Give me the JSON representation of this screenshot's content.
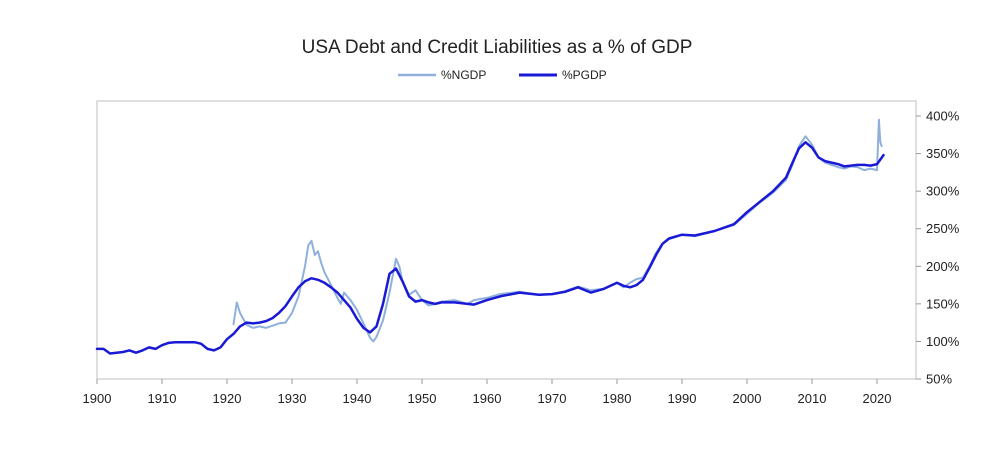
{
  "chart_data": {
    "type": "line",
    "title": "USA Debt and Credit Liabilities as a % of GDP",
    "xlabel": "",
    "ylabel": "",
    "xlim": [
      1900,
      2026
    ],
    "ylim": [
      50,
      420
    ],
    "x_ticks": [
      "1900",
      "1910",
      "1920",
      "1930",
      "1940",
      "1950",
      "1960",
      "1970",
      "1980",
      "1990",
      "2000",
      "2010",
      "2020"
    ],
    "y_ticks": [
      "50%",
      "100%",
      "150%",
      "200%",
      "250%",
      "300%",
      "350%",
      "400%"
    ],
    "y_tick_values": [
      50,
      100,
      150,
      200,
      250,
      300,
      350,
      400
    ],
    "grid": false,
    "legend_position": "top-center",
    "series": [
      {
        "name": "%NGDP",
        "color": "#8fb0dc",
        "points": [
          [
            1921,
            123
          ],
          [
            1921.5,
            152
          ],
          [
            1922,
            138
          ],
          [
            1923,
            122
          ],
          [
            1924,
            118
          ],
          [
            1925,
            120
          ],
          [
            1926,
            118
          ],
          [
            1927,
            121
          ],
          [
            1928,
            124
          ],
          [
            1929,
            125
          ],
          [
            1930,
            138
          ],
          [
            1931,
            160
          ],
          [
            1932,
            200
          ],
          [
            1932.5,
            228
          ],
          [
            1933,
            234
          ],
          [
            1933.5,
            215
          ],
          [
            1934,
            220
          ],
          [
            1934.5,
            204
          ],
          [
            1935,
            192
          ],
          [
            1936,
            175
          ],
          [
            1937,
            158
          ],
          [
            1937.5,
            150
          ],
          [
            1938,
            165
          ],
          [
            1939,
            155
          ],
          [
            1940,
            142
          ],
          [
            1941,
            124
          ],
          [
            1942,
            105
          ],
          [
            1942.5,
            100
          ],
          [
            1943,
            106
          ],
          [
            1944,
            128
          ],
          [
            1945,
            165
          ],
          [
            1946,
            210
          ],
          [
            1946.5,
            200
          ],
          [
            1947,
            180
          ],
          [
            1948,
            162
          ],
          [
            1949,
            168
          ],
          [
            1950,
            155
          ],
          [
            1951,
            148
          ],
          [
            1952,
            150
          ],
          [
            1953,
            153
          ],
          [
            1955,
            155
          ],
          [
            1957,
            150
          ],
          [
            1958,
            155
          ],
          [
            1960,
            158
          ],
          [
            1962,
            163
          ],
          [
            1965,
            166
          ],
          [
            1968,
            162
          ],
          [
            1970,
            163
          ],
          [
            1972,
            167
          ],
          [
            1974,
            173
          ],
          [
            1976,
            168
          ],
          [
            1978,
            170
          ],
          [
            1980,
            178
          ],
          [
            1981,
            172
          ],
          [
            1982,
            178
          ],
          [
            1983,
            183
          ],
          [
            1984,
            185
          ],
          [
            1985,
            200
          ],
          [
            1986,
            218
          ],
          [
            1987,
            230
          ],
          [
            1988,
            236
          ],
          [
            1990,
            242
          ],
          [
            1992,
            240
          ],
          [
            1995,
            247
          ],
          [
            1998,
            255
          ],
          [
            2000,
            270
          ],
          [
            2002,
            285
          ],
          [
            2004,
            298
          ],
          [
            2006,
            315
          ],
          [
            2007,
            335
          ],
          [
            2008,
            360
          ],
          [
            2009,
            373
          ],
          [
            2010,
            362
          ],
          [
            2011,
            345
          ],
          [
            2012,
            338
          ],
          [
            2013,
            335
          ],
          [
            2014,
            332
          ],
          [
            2015,
            330
          ],
          [
            2016,
            333
          ],
          [
            2017,
            332
          ],
          [
            2018,
            328
          ],
          [
            2019,
            330
          ],
          [
            2020,
            328
          ],
          [
            2020.3,
            395
          ],
          [
            2020.5,
            365
          ],
          [
            2020.7,
            360
          ]
        ]
      },
      {
        "name": "%PGDP",
        "color": "#1a1ad6",
        "points": [
          [
            1900,
            90
          ],
          [
            1901,
            90
          ],
          [
            1902,
            84
          ],
          [
            1903,
            85
          ],
          [
            1904,
            86
          ],
          [
            1905,
            88
          ],
          [
            1906,
            85
          ],
          [
            1907,
            88
          ],
          [
            1908,
            92
          ],
          [
            1909,
            90
          ],
          [
            1910,
            95
          ],
          [
            1911,
            98
          ],
          [
            1912,
            99
          ],
          [
            1913,
            99
          ],
          [
            1914,
            99
          ],
          [
            1915,
            99
          ],
          [
            1916,
            97
          ],
          [
            1917,
            90
          ],
          [
            1918,
            88
          ],
          [
            1919,
            92
          ],
          [
            1920,
            103
          ],
          [
            1921,
            110
          ],
          [
            1922,
            120
          ],
          [
            1923,
            125
          ],
          [
            1924,
            124
          ],
          [
            1925,
            125
          ],
          [
            1926,
            127
          ],
          [
            1927,
            131
          ],
          [
            1928,
            138
          ],
          [
            1929,
            147
          ],
          [
            1930,
            160
          ],
          [
            1931,
            172
          ],
          [
            1932,
            180
          ],
          [
            1933,
            184
          ],
          [
            1934,
            182
          ],
          [
            1935,
            178
          ],
          [
            1936,
            172
          ],
          [
            1937,
            165
          ],
          [
            1938,
            155
          ],
          [
            1939,
            145
          ],
          [
            1940,
            130
          ],
          [
            1941,
            118
          ],
          [
            1942,
            112
          ],
          [
            1943,
            120
          ],
          [
            1944,
            150
          ],
          [
            1945,
            190
          ],
          [
            1946,
            197
          ],
          [
            1947,
            180
          ],
          [
            1948,
            160
          ],
          [
            1949,
            153
          ],
          [
            1950,
            155
          ],
          [
            1951,
            152
          ],
          [
            1952,
            150
          ],
          [
            1953,
            152
          ],
          [
            1955,
            152
          ],
          [
            1957,
            150
          ],
          [
            1958,
            149
          ],
          [
            1960,
            155
          ],
          [
            1962,
            160
          ],
          [
            1965,
            165
          ],
          [
            1968,
            162
          ],
          [
            1970,
            163
          ],
          [
            1972,
            166
          ],
          [
            1974,
            172
          ],
          [
            1976,
            165
          ],
          [
            1978,
            170
          ],
          [
            1980,
            178
          ],
          [
            1981,
            174
          ],
          [
            1982,
            172
          ],
          [
            1983,
            175
          ],
          [
            1984,
            182
          ],
          [
            1985,
            198
          ],
          [
            1986,
            215
          ],
          [
            1987,
            230
          ],
          [
            1988,
            237
          ],
          [
            1990,
            242
          ],
          [
            1992,
            241
          ],
          [
            1995,
            247
          ],
          [
            1998,
            256
          ],
          [
            2000,
            272
          ],
          [
            2002,
            286
          ],
          [
            2004,
            300
          ],
          [
            2006,
            318
          ],
          [
            2007,
            338
          ],
          [
            2008,
            357
          ],
          [
            2009,
            365
          ],
          [
            2010,
            358
          ],
          [
            2011,
            345
          ],
          [
            2012,
            340
          ],
          [
            2013,
            338
          ],
          [
            2014,
            336
          ],
          [
            2015,
            333
          ],
          [
            2016,
            334
          ],
          [
            2017,
            335
          ],
          [
            2018,
            335
          ],
          [
            2019,
            334
          ],
          [
            2020,
            336
          ],
          [
            2020.5,
            342
          ],
          [
            2021,
            348
          ]
        ]
      }
    ]
  }
}
